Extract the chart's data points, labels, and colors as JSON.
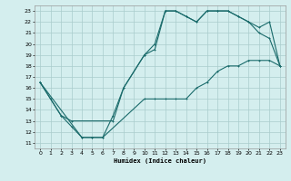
{
  "title": "",
  "xlabel": "Humidex (Indice chaleur)",
  "background_color": "#d4eeee",
  "grid_color": "#aacccc",
  "line_color": "#1a6b6b",
  "xlim": [
    -0.5,
    23.5
  ],
  "ylim": [
    10.5,
    23.5
  ],
  "xticks": [
    0,
    1,
    2,
    3,
    4,
    5,
    6,
    7,
    8,
    9,
    10,
    11,
    12,
    13,
    14,
    15,
    16,
    17,
    18,
    19,
    20,
    21,
    22,
    23
  ],
  "yticks": [
    11,
    12,
    13,
    14,
    15,
    16,
    17,
    18,
    19,
    20,
    21,
    22,
    23
  ],
  "curve1_x": [
    0,
    1,
    2,
    3,
    4,
    5,
    6,
    7,
    8,
    10,
    11,
    12,
    13,
    14,
    15,
    16,
    17,
    18,
    19,
    20,
    21,
    22,
    23
  ],
  "curve1_y": [
    16.5,
    15,
    13.5,
    12.5,
    11.5,
    11.5,
    11.5,
    13.5,
    16,
    19,
    20,
    23,
    23,
    22.5,
    22,
    23,
    23,
    23,
    22.5,
    22,
    21,
    20.5,
    18
  ],
  "curve2_x": [
    0,
    2,
    3,
    7,
    8,
    10,
    11,
    12,
    13,
    14,
    15,
    16,
    17,
    18,
    19,
    20,
    21,
    22,
    23
  ],
  "curve2_y": [
    16.5,
    13.5,
    13,
    13,
    16,
    19,
    19.5,
    23,
    23,
    22.5,
    22,
    23,
    23,
    23,
    22.5,
    22,
    21.5,
    22,
    18
  ],
  "curve3_x": [
    0,
    4,
    5,
    6,
    10,
    11,
    12,
    13,
    14,
    15,
    16,
    17,
    18,
    19,
    20,
    21,
    22,
    23
  ],
  "curve3_y": [
    16.5,
    11.5,
    11.5,
    11.5,
    15,
    15,
    15,
    15,
    15,
    16,
    16.5,
    17.5,
    18,
    18,
    18.5,
    18.5,
    18.5,
    18
  ]
}
